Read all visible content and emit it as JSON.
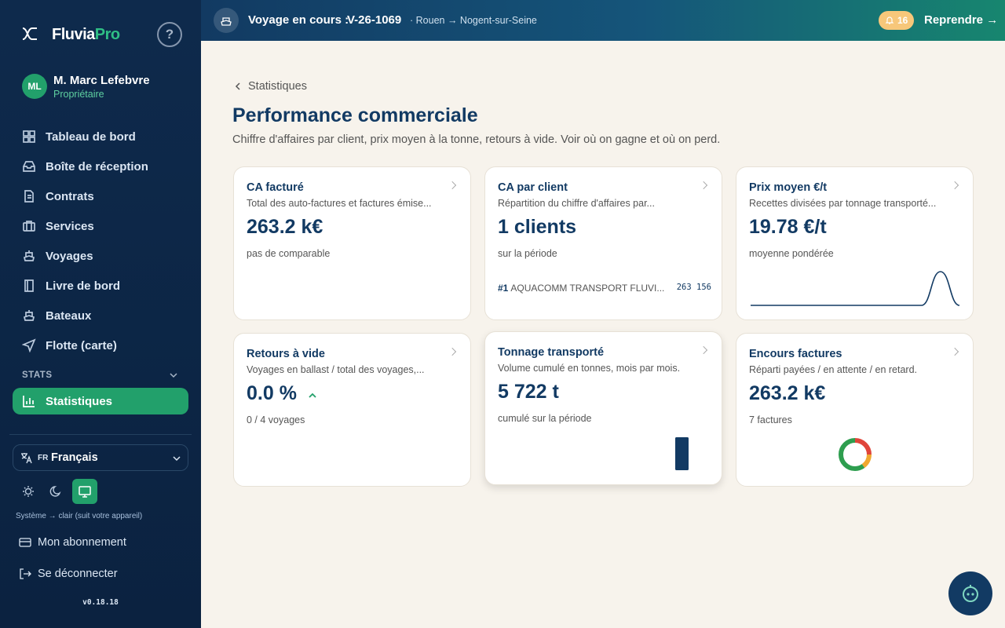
{
  "sidebar": {
    "brand": {
      "name": "Fluvia",
      "suffix": "Pro"
    },
    "help": "?",
    "user": {
      "initials": "ML",
      "name": "M. Marc Lefebvre",
      "role": "Propriétaire"
    },
    "nav": [
      "Tableau de bord",
      "Boîte de réception",
      "Contrats",
      "Services",
      "Voyages",
      "Livre de bord",
      "Bateaux",
      "Flotte (carte)"
    ],
    "section": "STATS",
    "active": "Statistiques",
    "language": {
      "code": "FR",
      "label": "Français"
    },
    "theme_note": "Système → clair (suit votre appareil)",
    "subscription": "Mon abonnement",
    "logout": "Se déconnecter",
    "version": "v0.18.18"
  },
  "topbar": {
    "label": "Voyage en cours :",
    "voyage": "V-26-1069",
    "route": "· Rouen → Nogent-sur-Seine",
    "notifications": 16,
    "resume": "Reprendre →"
  },
  "breadcrumb": "Statistiques",
  "title": "Performance commerciale",
  "subtitle": "Chiffre d'affaires par client, prix moyen à la tonne, retours à vide. Voir où on gagne et où on perd.",
  "cards": [
    {
      "title": "CA facturé",
      "description": "Total des auto-factures et factures émise...",
      "value": "263.2 k€",
      "note": "pas de comparable"
    },
    {
      "title": "CA par client",
      "description": "Répartition du chiffre d'affaires par...",
      "value": "1 clients",
      "note": "sur la période",
      "ranking": {
        "rank": "#1",
        "client": "AQUACOMM TRANSPORT FLUVI...",
        "amount": "263 156"
      }
    },
    {
      "title": "Prix moyen €/t",
      "description": "Recettes divisées par tonnage transporté...",
      "value": "19.78 €/t",
      "note": "moyenne pondérée",
      "sparkline": {
        "values": [
          0,
          0,
          0,
          0,
          0,
          0,
          0,
          0,
          0,
          0,
          19.78,
          0
        ],
        "color": "#123a63"
      }
    },
    {
      "title": "Retours à vide",
      "description": "Voyages en ballast / total des voyages,...",
      "value": "0.0 %",
      "note": "0 / 4 voyages"
    },
    {
      "title": "Tonnage transporté",
      "description": "Volume cumulé en tonnes, mois par mois.",
      "value": "5 722 t",
      "note": "cumulé sur la période",
      "bars": {
        "values": [
          5722
        ],
        "color": "#123a63"
      }
    },
    {
      "title": "Encours factures",
      "description": "Réparti payées / en attente / en retard.",
      "value": "263.2 k€",
      "note": "7 factures",
      "donut": {
        "values": [
          25,
          15,
          60
        ],
        "colors": [
          "#e0453a",
          "#f0a830",
          "#2e9e4f"
        ]
      }
    }
  ]
}
